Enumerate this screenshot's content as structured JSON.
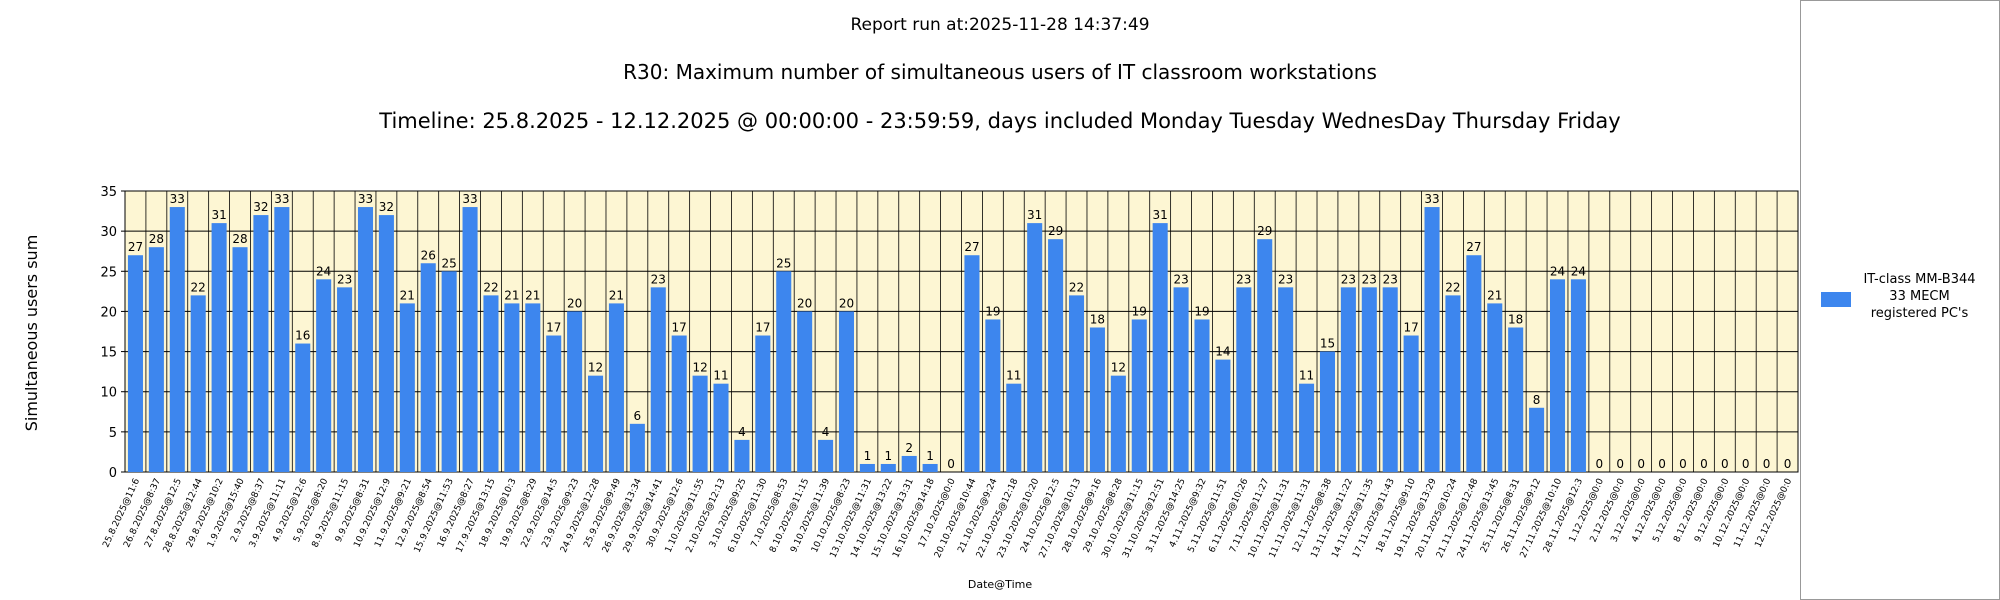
{
  "chart_data": {
    "type": "bar",
    "header": "Report run at:2025-11-28 14:37:49",
    "title": "R30: Maximum number of simultaneous users of IT classroom workstations",
    "subtitle": "Timeline: 25.8.2025  - 12.12.2025  @  00:00:00 -  23:59:59, days included Monday Tuesday WednesDay Thursday Friday",
    "x_label": "Date@Time",
    "y_label": "Simultaneous users sum",
    "categories": [
      "25.8.2025@11:6",
      "26.8.2025@8:37",
      "27.8.2025@12:5",
      "28.8.2025@12:44",
      "29.8.2025@10:2",
      "1.9.2025@15:40",
      "2.9.2025@8:37",
      "3.9.2025@11:11",
      "4.9.2025@12:6",
      "5.9.2025@8:20",
      "8.9.2025@11:15",
      "9.9.2025@8:31",
      "10.9.2025@12:9",
      "11.9.2025@9:21",
      "12.9.2025@8:54",
      "15.9.2025@11:53",
      "16.9.2025@8:27",
      "17.9.2025@13:15",
      "18.9.2025@10:3",
      "19.9.2025@8:29",
      "22.9.2025@14:5",
      "23.9.2025@9:23",
      "24.9.2025@12:28",
      "25.9.2025@9:49",
      "26.9.2025@13:34",
      "29.9.2025@14:41",
      "30.9.2025@12:6",
      "1.10.2025@11:55",
      "2.10.2025@12:13",
      "3.10.2025@9:25",
      "6.10.2025@11:30",
      "7.10.2025@8:53",
      "8.10.2025@11:15",
      "9.10.2025@11:39",
      "10.10.2025@8:23",
      "13.10.2025@11:31",
      "14.10.2025@13:22",
      "15.10.2025@13:31",
      "16.10.2025@14:18",
      "17.10.2025@0:0",
      "20.10.2025@10:44",
      "21.10.2025@9:24",
      "22.10.2025@12:18",
      "23.10.2025@10:20",
      "24.10.2025@12:5",
      "27.10.2025@10:13",
      "28.10.2025@9:16",
      "29.10.2025@8:28",
      "30.10.2025@11:15",
      "31.10.2025@12:51",
      "3.11.2025@14:25",
      "4.11.2025@9:32",
      "5.11.2025@11:51",
      "6.11.2025@10:26",
      "7.11.2025@11:27",
      "10.11.2025@11:31",
      "11.11.2025@11:31",
      "12.11.2025@8:38",
      "13.11.2025@11:22",
      "14.11.2025@11:35",
      "17.11.2025@11:43",
      "18.11.2025@9:10",
      "19.11.2025@13:29",
      "20.11.2025@10:24",
      "21.11.2025@12:48",
      "24.11.2025@13:45",
      "25.11.2025@8:31",
      "26.11.2025@9:12",
      "27.11.2025@10:10",
      "28.11.2025@12:3",
      "1.12.2025@0:0",
      "2.12.2025@0:0",
      "3.12.2025@0:0",
      "4.12.2025@0:0",
      "5.12.2025@0:0",
      "8.12.2025@0:0",
      "9.12.2025@0:0",
      "10.12.2025@0:0",
      "11.12.2025@0:0",
      "12.12.2025@0:0"
    ],
    "series": [
      {
        "name": "IT-class MM-B344 33 MECM registered PC's",
        "color": "#3d86ee",
        "values": [
          27,
          28,
          33,
          22,
          31,
          28,
          32,
          33,
          16,
          24,
          23,
          33,
          32,
          21,
          26,
          25,
          33,
          22,
          21,
          21,
          17,
          20,
          12,
          21,
          6,
          23,
          17,
          12,
          11,
          4,
          17,
          25,
          20,
          4,
          20,
          1,
          1,
          2,
          1,
          0,
          27,
          19,
          11,
          31,
          29,
          22,
          18,
          12,
          19,
          31,
          23,
          19,
          14,
          23,
          29,
          23,
          11,
          15,
          23,
          23,
          23,
          17,
          33,
          22,
          27,
          21,
          18,
          8,
          24,
          24,
          0,
          0,
          0,
          0,
          0,
          0,
          0,
          0,
          0,
          0
        ]
      }
    ],
    "ylim": [
      0,
      35
    ],
    "yticks": [
      0,
      5,
      10,
      15,
      20,
      25,
      30,
      35
    ],
    "grid": true,
    "plot_background": "#fdf6d3",
    "legend": "right"
  }
}
